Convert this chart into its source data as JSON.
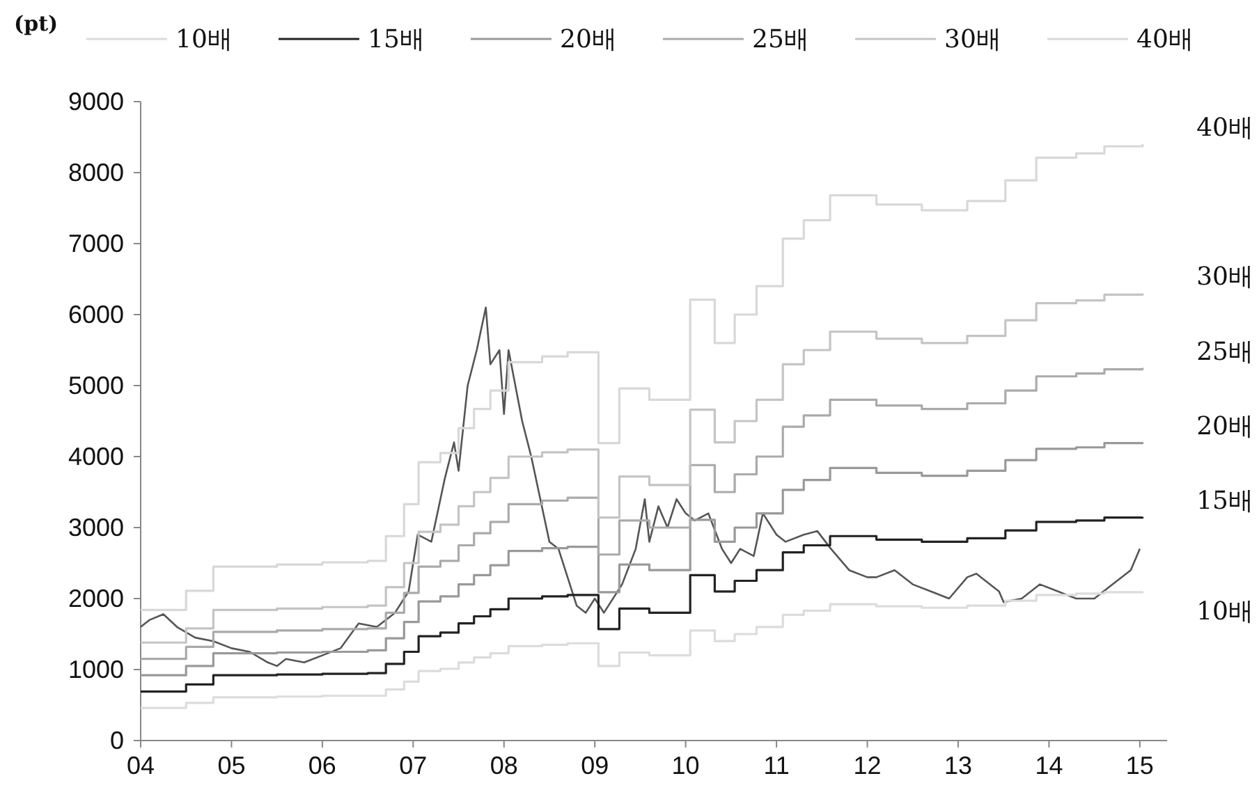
{
  "chart_data": {
    "type": "step",
    "ylabel": "(pt)",
    "legend": "top",
    "xlim": [
      2004,
      2015.3
    ],
    "ylim": [
      0,
      9000
    ],
    "xticks": [
      {
        "value": 2004,
        "label": "04"
      },
      {
        "value": 2005,
        "label": "05"
      },
      {
        "value": 2006,
        "label": "06"
      },
      {
        "value": 2007,
        "label": "07"
      },
      {
        "value": 2008,
        "label": "08"
      },
      {
        "value": 2009,
        "label": "09"
      },
      {
        "value": 2010,
        "label": "10"
      },
      {
        "value": 2011,
        "label": "11"
      },
      {
        "value": 2012,
        "label": "12"
      },
      {
        "value": 2013,
        "label": "13"
      },
      {
        "value": 2014,
        "label": "14"
      },
      {
        "value": 2015,
        "label": "15"
      }
    ],
    "yticks": [
      0,
      1000,
      2000,
      3000,
      4000,
      5000,
      6000,
      7000,
      8000,
      9000
    ],
    "x": [
      2004.0,
      2004.5,
      2004.8,
      2005.5,
      2006.0,
      2006.5,
      2006.7,
      2006.9,
      2007.06,
      2007.3,
      2007.5,
      2007.67,
      2007.85,
      2008.05,
      2008.42,
      2008.7,
      2009.04,
      2009.27,
      2009.6,
      2010.05,
      2010.32,
      2010.54,
      2010.78,
      2011.07,
      2011.3,
      2011.59,
      2012.1,
      2012.6,
      2013.1,
      2013.52,
      2013.86,
      2014.3,
      2014.61,
      2015.03
    ],
    "series": [
      {
        "type": "line",
        "color": "#555555",
        "x": [
          2004.0,
          2004.1,
          2004.25,
          2004.4,
          2004.6,
          2004.8,
          2005.0,
          2005.2,
          2005.4,
          2005.5,
          2005.6,
          2005.8,
          2006.0,
          2006.2,
          2006.4,
          2006.6,
          2006.8,
          2006.95,
          2007.05,
          2007.2,
          2007.35,
          2007.45,
          2007.5,
          2007.6,
          2007.7,
          2007.8,
          2007.85,
          2007.95,
          2008.0,
          2008.05,
          2008.2,
          2008.3,
          2008.4,
          2008.5,
          2008.6,
          2008.7,
          2008.8,
          2008.9,
          2009.0,
          2009.1,
          2009.3,
          2009.45,
          2009.55,
          2009.6,
          2009.7,
          2009.8,
          2009.9,
          2010.0,
          2010.1,
          2010.25,
          2010.4,
          2010.5,
          2010.6,
          2010.75,
          2010.85,
          2011.0,
          2011.1,
          2011.3,
          2011.45,
          2011.6,
          2011.8,
          2012.0,
          2012.1,
          2012.3,
          2012.5,
          2012.7,
          2012.9,
          2013.1,
          2013.2,
          2013.45,
          2013.5,
          2013.7,
          2013.9,
          2014.1,
          2014.3,
          2014.5,
          2014.7,
          2014.9,
          2015.0
        ],
        "values": [
          1600,
          1700,
          1780,
          1600,
          1450,
          1400,
          1300,
          1250,
          1100,
          1050,
          1150,
          1100,
          1200,
          1300,
          1650,
          1600,
          1800,
          2100,
          2900,
          2800,
          3700,
          4200,
          3800,
          5000,
          5500,
          6100,
          5300,
          5500,
          4600,
          5500,
          4500,
          4000,
          3400,
          2800,
          2700,
          2300,
          1900,
          1800,
          2000,
          1800,
          2200,
          2700,
          3400,
          2800,
          3300,
          3000,
          3400,
          3200,
          3100,
          3200,
          2700,
          2500,
          2700,
          2600,
          3200,
          2900,
          2800,
          2900,
          2950,
          2700,
          2400,
          2300,
          2300,
          2400,
          2200,
          2100,
          2000,
          2300,
          2350,
          2100,
          1950,
          2000,
          2200,
          2100,
          2000,
          2000,
          2200,
          2400,
          2700
        ]
      },
      {
        "name": "10배",
        "color": "#dcdcdc",
        "values": [
          460,
          530,
          610,
          620,
          630,
          630,
          720,
          830,
          980,
          1010,
          1100,
          1170,
          1230,
          1330,
          1350,
          1370,
          1050,
          1240,
          1200,
          1550,
          1400,
          1500,
          1600,
          1770,
          1830,
          1920,
          1890,
          1870,
          1900,
          1970,
          2050,
          2070,
          2090,
          2100
        ]
      },
      {
        "name": "15배",
        "color": "#222222",
        "values": [
          690,
          790,
          920,
          930,
          940,
          950,
          1080,
          1250,
          1470,
          1520,
          1650,
          1750,
          1850,
          2000,
          2030,
          2050,
          1570,
          1860,
          1800,
          2330,
          2100,
          2250,
          2400,
          2650,
          2750,
          2880,
          2830,
          2800,
          2850,
          2960,
          3080,
          3100,
          3140,
          3150
        ]
      },
      {
        "name": "20배",
        "color": "#999999",
        "values": [
          920,
          1050,
          1230,
          1240,
          1250,
          1270,
          1440,
          1670,
          1960,
          2030,
          2200,
          2330,
          2470,
          2670,
          2710,
          2730,
          2090,
          2480,
          2400,
          3110,
          2800,
          3000,
          3200,
          3530,
          3670,
          3840,
          3770,
          3730,
          3800,
          3950,
          4110,
          4130,
          4190,
          4200
        ]
      },
      {
        "name": "25배",
        "color": "#aaaaaa",
        "values": [
          1150,
          1320,
          1530,
          1550,
          1570,
          1580,
          1800,
          2080,
          2450,
          2530,
          2750,
          2920,
          3080,
          3330,
          3380,
          3420,
          2620,
          3100,
          3000,
          3880,
          3500,
          3750,
          4000,
          4420,
          4580,
          4800,
          4720,
          4670,
          4750,
          4930,
          5130,
          5170,
          5230,
          5250
        ]
      },
      {
        "name": "30배",
        "color": "#c4c4c4",
        "values": [
          1380,
          1580,
          1840,
          1860,
          1880,
          1900,
          2160,
          2500,
          2940,
          3040,
          3300,
          3500,
          3700,
          4000,
          4060,
          4100,
          3140,
          3720,
          3600,
          4660,
          4200,
          4500,
          4800,
          5300,
          5500,
          5760,
          5660,
          5600,
          5700,
          5920,
          6160,
          6200,
          6280,
          6300
        ]
      },
      {
        "name": "40배",
        "color": "#d8d8d8",
        "values": [
          1840,
          2110,
          2450,
          2480,
          2510,
          2530,
          2880,
          3330,
          3920,
          4050,
          4400,
          4670,
          4930,
          5330,
          5410,
          5470,
          4190,
          4960,
          4800,
          6210,
          5600,
          6000,
          6400,
          7070,
          7330,
          7680,
          7550,
          7470,
          7600,
          7890,
          8210,
          8270,
          8370,
          8400
        ]
      }
    ]
  }
}
